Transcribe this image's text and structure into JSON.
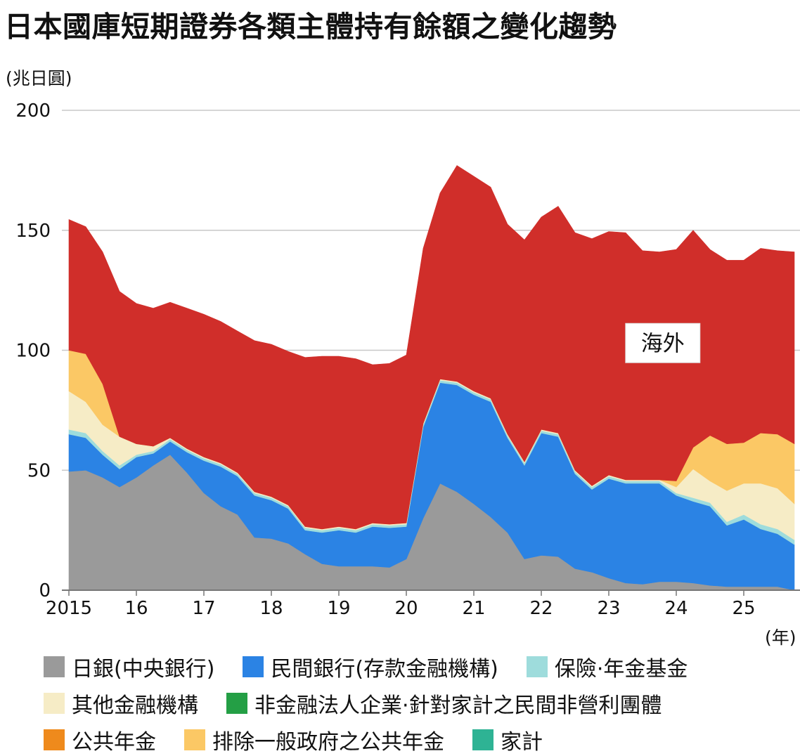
{
  "title": "日本國庫短期證券各類主體持有餘額之變化趨勢",
  "chart_data": {
    "type": "area",
    "stacked": true,
    "title": "日本國庫短期證券各類主體持有餘額之變化趨勢",
    "y_unit_label": "(兆日圓)",
    "x_unit_label": "(年)",
    "ylim": [
      0,
      200
    ],
    "y_ticks": [
      0,
      50,
      100,
      150,
      200
    ],
    "grid": true,
    "x_tick_labels": [
      {
        "x": 2015,
        "label": "2015"
      },
      {
        "x": 2016,
        "label": "16"
      },
      {
        "x": 2017,
        "label": "17"
      },
      {
        "x": 2018,
        "label": "18"
      },
      {
        "x": 2019,
        "label": "19"
      },
      {
        "x": 2020,
        "label": "20"
      },
      {
        "x": 2021,
        "label": "21"
      },
      {
        "x": 2022,
        "label": "22"
      },
      {
        "x": 2023,
        "label": "23"
      },
      {
        "x": 2024,
        "label": "24"
      },
      {
        "x": 2025,
        "label": "25"
      }
    ],
    "x": [
      2015.0,
      2015.25,
      2015.5,
      2015.75,
      2016.0,
      2016.25,
      2016.5,
      2016.75,
      2017.0,
      2017.25,
      2017.5,
      2017.75,
      2018.0,
      2018.25,
      2018.5,
      2018.75,
      2019.0,
      2019.25,
      2019.5,
      2019.75,
      2020.0,
      2020.25,
      2020.5,
      2020.75,
      2021.0,
      2021.25,
      2021.5,
      2021.75,
      2022.0,
      2022.25,
      2022.5,
      2022.75,
      2023.0,
      2023.25,
      2023.5,
      2023.75,
      2024.0,
      2024.25,
      2024.5,
      2024.75,
      2025.0,
      2025.25,
      2025.5,
      2025.75
    ],
    "series": [
      {
        "name": "日銀(中央銀行)",
        "color": "#9a9a9a",
        "show_in_plot": true,
        "values": [
          49.5,
          50.0,
          47.0,
          43.0,
          47.0,
          52.0,
          56.5,
          49.0,
          40.5,
          35.0,
          31.5,
          22.0,
          21.5,
          19.5,
          15.0,
          11.0,
          10.0,
          10.0,
          10.0,
          9.5,
          13.0,
          30.0,
          44.5,
          41.0,
          36.0,
          30.5,
          24.0,
          13.0,
          14.5,
          14.0,
          9.0,
          7.5,
          5.0,
          3.0,
          2.5,
          3.5,
          3.5,
          3.0,
          2.0,
          1.5,
          1.5,
          1.5,
          1.5,
          0.0
        ]
      },
      {
        "name": "民間銀行(存款金融機構)",
        "color": "#2b83e4",
        "show_in_plot": true,
        "values": [
          15.5,
          13.5,
          9.5,
          7.5,
          8.5,
          5.0,
          5.5,
          8.5,
          13.5,
          16.5,
          16.0,
          17.5,
          16.0,
          14.5,
          10.0,
          13.0,
          15.0,
          14.0,
          16.5,
          16.5,
          13.5,
          38.0,
          42.0,
          44.5,
          45.5,
          48.0,
          39.5,
          39.0,
          51.0,
          50.0,
          39.5,
          34.5,
          41.5,
          41.5,
          42.0,
          41.0,
          36.0,
          34.0,
          33.0,
          25.5,
          28.0,
          24.0,
          22.0,
          19.0
        ]
      },
      {
        "name": "保險·年金基金",
        "color": "#9edcdc",
        "show_in_plot": true,
        "values": [
          2.0,
          2.0,
          1.5,
          1.5,
          1.0,
          1.0,
          1.0,
          1.0,
          1.0,
          1.0,
          1.0,
          1.0,
          1.0,
          1.0,
          1.0,
          1.0,
          1.0,
          1.0,
          1.0,
          1.0,
          1.0,
          1.0,
          1.0,
          1.0,
          1.0,
          1.0,
          1.0,
          1.0,
          1.0,
          1.0,
          1.0,
          1.0,
          1.0,
          1.0,
          1.0,
          1.0,
          1.0,
          1.5,
          1.5,
          1.5,
          2.0,
          2.0,
          2.0,
          2.0
        ]
      },
      {
        "name": "其他金融機構",
        "color": "#f6ecc6",
        "show_in_plot": true,
        "values": [
          16.0,
          13.0,
          11.0,
          12.0,
          4.5,
          2.0,
          0.5,
          0.5,
          0.5,
          0.5,
          0.5,
          0.5,
          0.5,
          0.5,
          0.5,
          0.5,
          0.5,
          0.5,
          0.5,
          0.5,
          0.5,
          0.5,
          0.5,
          0.5,
          0.5,
          0.5,
          0.5,
          0.5,
          0.5,
          0.5,
          0.5,
          0.5,
          0.5,
          0.5,
          0.5,
          0.5,
          2.5,
          12.0,
          9.0,
          13.0,
          13.0,
          17.0,
          17.0,
          15.0
        ]
      },
      {
        "name": "非金融法人企業·針對家計之民間非營利團體",
        "color": "#249f45",
        "show_in_plot": false,
        "values": [
          0,
          0,
          0,
          0,
          0,
          0,
          0,
          0,
          0,
          0,
          0,
          0,
          0,
          0,
          0,
          0,
          0,
          0,
          0,
          0,
          0,
          0,
          0,
          0,
          0,
          0,
          0,
          0,
          0,
          0,
          0,
          0,
          0,
          0,
          0,
          0,
          0,
          0,
          0,
          0,
          0,
          0,
          0,
          0
        ]
      },
      {
        "name": "公共年金",
        "color": "#ef8a1c",
        "show_in_plot": false,
        "values": [
          0,
          0,
          0,
          0,
          0,
          0,
          0,
          0,
          0,
          0,
          0,
          0,
          0,
          0,
          0,
          0,
          0,
          0,
          0,
          0,
          0,
          0,
          0,
          0,
          0,
          0,
          0,
          0,
          0,
          0,
          0,
          0,
          0,
          0,
          0,
          0,
          0,
          0,
          0,
          0,
          0,
          0,
          0,
          0
        ]
      },
      {
        "name": "排除一般政府之公共年金",
        "color": "#fbc865",
        "show_in_plot": true,
        "values": [
          17.0,
          20.0,
          17.0,
          0,
          0,
          0,
          0,
          0,
          0,
          0,
          0,
          0,
          0,
          0,
          0,
          0,
          0,
          0,
          0,
          0,
          0,
          0,
          0,
          0,
          0,
          0,
          0,
          0,
          0,
          0,
          0,
          0,
          0,
          0,
          0,
          0,
          2.5,
          9.0,
          19.0,
          19.5,
          17.0,
          21.0,
          22.5,
          25.0
        ]
      },
      {
        "name": "家計",
        "color": "#2eb394",
        "show_in_plot": false,
        "values": [
          0,
          0,
          0,
          0,
          0,
          0,
          0,
          0,
          0,
          0,
          0,
          0,
          0,
          0,
          0,
          0,
          0,
          0,
          0,
          0,
          0,
          0,
          0,
          0,
          0,
          0,
          0,
          0,
          0,
          0,
          0,
          0,
          0,
          0,
          0,
          0,
          0,
          0,
          0,
          0,
          0,
          0,
          0,
          0
        ]
      },
      {
        "name": "海外",
        "color": "#d02e2a",
        "show_in_plot": true,
        "values": [
          54.5,
          53.0,
          55.0,
          60.5,
          58.5,
          57.5,
          56.5,
          58.5,
          59.5,
          59.0,
          59.0,
          63.0,
          63.5,
          64.0,
          70.5,
          72.0,
          71.0,
          71.0,
          66.0,
          67.0,
          70.0,
          73.0,
          77.5,
          90.0,
          89.5,
          88.0,
          87.5,
          92.5,
          88.5,
          94.5,
          99.0,
          103.0,
          101.5,
          103.0,
          95.5,
          95.0,
          96.5,
          90.5,
          77.5,
          76.5,
          76.0,
          77.0,
          76.5,
          80.0
        ]
      }
    ],
    "annotations": [
      {
        "text": "海外",
        "x": 2023.8,
        "y": 103
      }
    ]
  },
  "legend_rows": [
    [
      {
        "label": "日銀(中央銀行)",
        "color": "#9a9a9a"
      },
      {
        "label": "民間銀行(存款金融機構)",
        "color": "#2b83e4"
      },
      {
        "label": "保險·年金基金",
        "color": "#9edcdc"
      }
    ],
    [
      {
        "label": "其他金融機構",
        "color": "#f6ecc6"
      },
      {
        "label": "非金融法人企業·針對家計之民間非營利團體",
        "color": "#249f45"
      }
    ],
    [
      {
        "label": "公共年金",
        "color": "#ef8a1c"
      },
      {
        "label": "排除一般政府之公共年金",
        "color": "#fbc865"
      },
      {
        "label": "家計",
        "color": "#2eb394"
      }
    ]
  ]
}
